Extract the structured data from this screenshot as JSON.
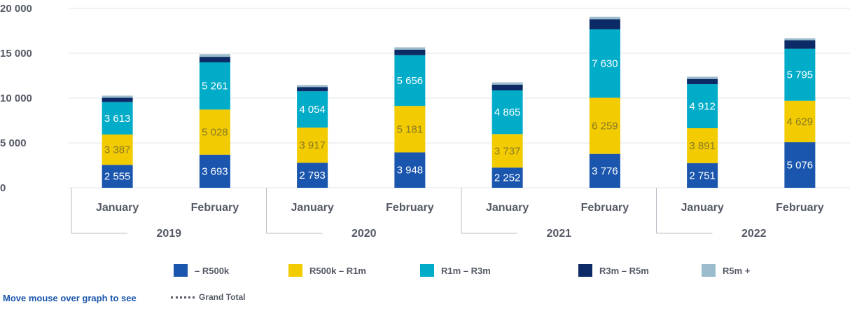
{
  "chart_data": {
    "type": "bar",
    "stacked": true,
    "y_ticks": [
      "0",
      "5 000",
      "10 000",
      "15 000",
      "20 000"
    ],
    "ylim": [
      0,
      20000
    ],
    "grid": true,
    "groups": [
      {
        "label": "2019",
        "categories": [
          "January",
          "February"
        ]
      },
      {
        "label": "2020",
        "categories": [
          "January",
          "February"
        ]
      },
      {
        "label": "2021",
        "categories": [
          "January",
          "February"
        ]
      },
      {
        "label": "2022",
        "categories": [
          "January",
          "February"
        ]
      }
    ],
    "series": [
      {
        "name": "– R500k",
        "color": "#1a56ad",
        "label_color": "#ffffff",
        "values": [
          2555,
          3693,
          2793,
          3948,
          2252,
          3776,
          2751,
          5076
        ],
        "labels": [
          "2 555",
          "3 693",
          "2 793",
          "3 948",
          "2 252",
          "3 776",
          "2 751",
          "5 076"
        ]
      },
      {
        "name": "R500k – R1m",
        "color": "#f2cb00",
        "label_color": "#8a7a2a",
        "values": [
          3387,
          5028,
          3917,
          5181,
          3737,
          6259,
          3891,
          4629
        ],
        "labels": [
          "3 387",
          "5 028",
          "3 917",
          "5 181",
          "3 737",
          "6 259",
          "3 891",
          "4 629"
        ]
      },
      {
        "name": "R1m – R3m",
        "color": "#00acc8",
        "label_color": "#ffffff",
        "values": [
          3613,
          5261,
          4054,
          5656,
          4865,
          7630,
          4912,
          5795
        ],
        "labels": [
          "3 613",
          "5 261",
          "4 054",
          "5 656",
          "4 865",
          "7 630",
          "4 912",
          "5 795"
        ]
      },
      {
        "name": "R3m – R5m",
        "color": "#0c2a66",
        "label_color": "#ffffff",
        "values": [
          480,
          620,
          470,
          620,
          650,
          1130,
          580,
          960
        ],
        "labels": [
          "",
          "",
          "",
          "",
          "",
          "",
          "",
          ""
        ]
      },
      {
        "name": "R5m +",
        "color": "#9bbccc",
        "label_color": "#ffffff",
        "values": [
          240,
          300,
          220,
          260,
          250,
          280,
          250,
          220
        ],
        "labels": [
          "",
          "",
          "",
          "",
          "",
          "",
          "",
          ""
        ]
      }
    ],
    "legend_position": "bottom"
  },
  "footer": {
    "hint": "Move mouse over graph to see",
    "hint_color": "#1a56ad",
    "grand_total_label": "Grand Total"
  }
}
